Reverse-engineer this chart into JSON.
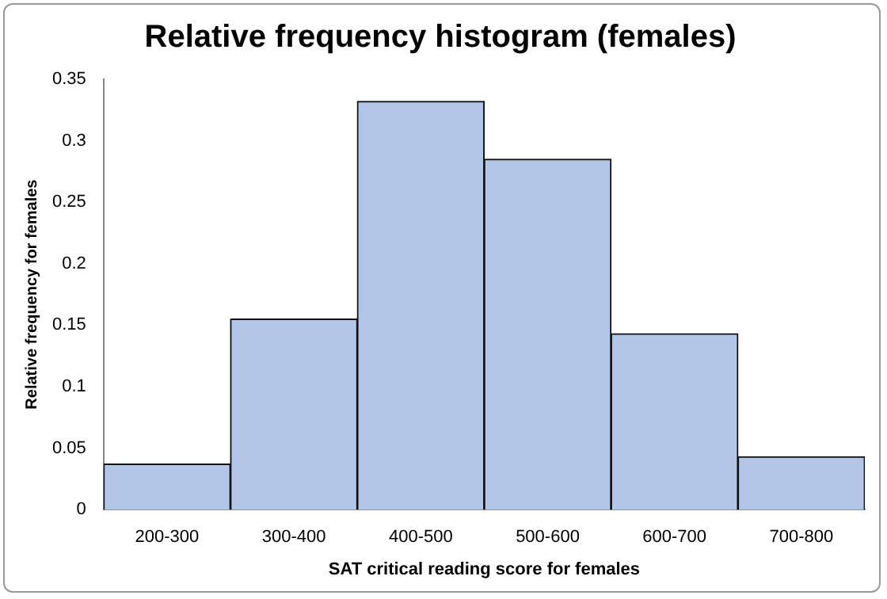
{
  "chart_data": {
    "type": "bar",
    "title": "Relative frequency histogram (females)",
    "xlabel": "SAT critical reading score for females",
    "ylabel": "Relative frequency for females",
    "categories": [
      "200-300",
      "300-400",
      "400-500",
      "500-600",
      "600-700",
      "700-800"
    ],
    "values": [
      0.037,
      0.155,
      0.332,
      0.285,
      0.143,
      0.043
    ],
    "color": "#b3c6e8",
    "ylim": [
      0,
      0.35
    ],
    "yticks": [
      0,
      0.05,
      0.1,
      0.15,
      0.2,
      0.25,
      0.3,
      0.35
    ],
    "grid": false,
    "legend": false
  }
}
